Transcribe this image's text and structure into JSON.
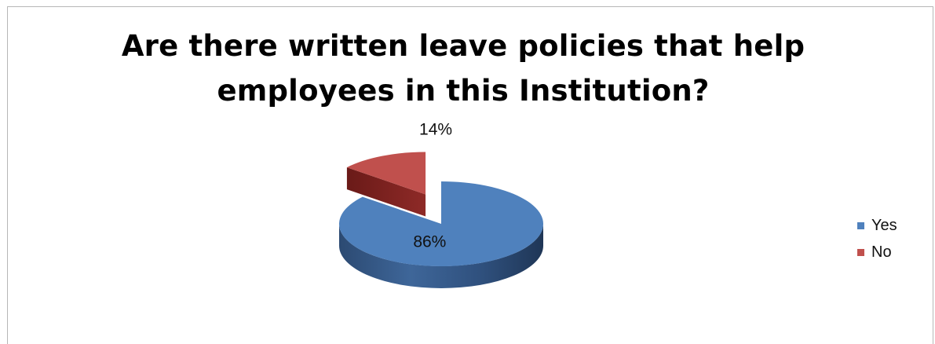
{
  "chart_data": {
    "type": "pie",
    "title": "Are there written leave policies that help employees in this Institution?",
    "categories": [
      "Yes",
      "No"
    ],
    "values": [
      86,
      14
    ],
    "data_labels": [
      "86%",
      "14%"
    ],
    "colors": [
      "#4f81bd",
      "#c0504d"
    ],
    "style": "3d-exploded",
    "legend_position": "right"
  }
}
